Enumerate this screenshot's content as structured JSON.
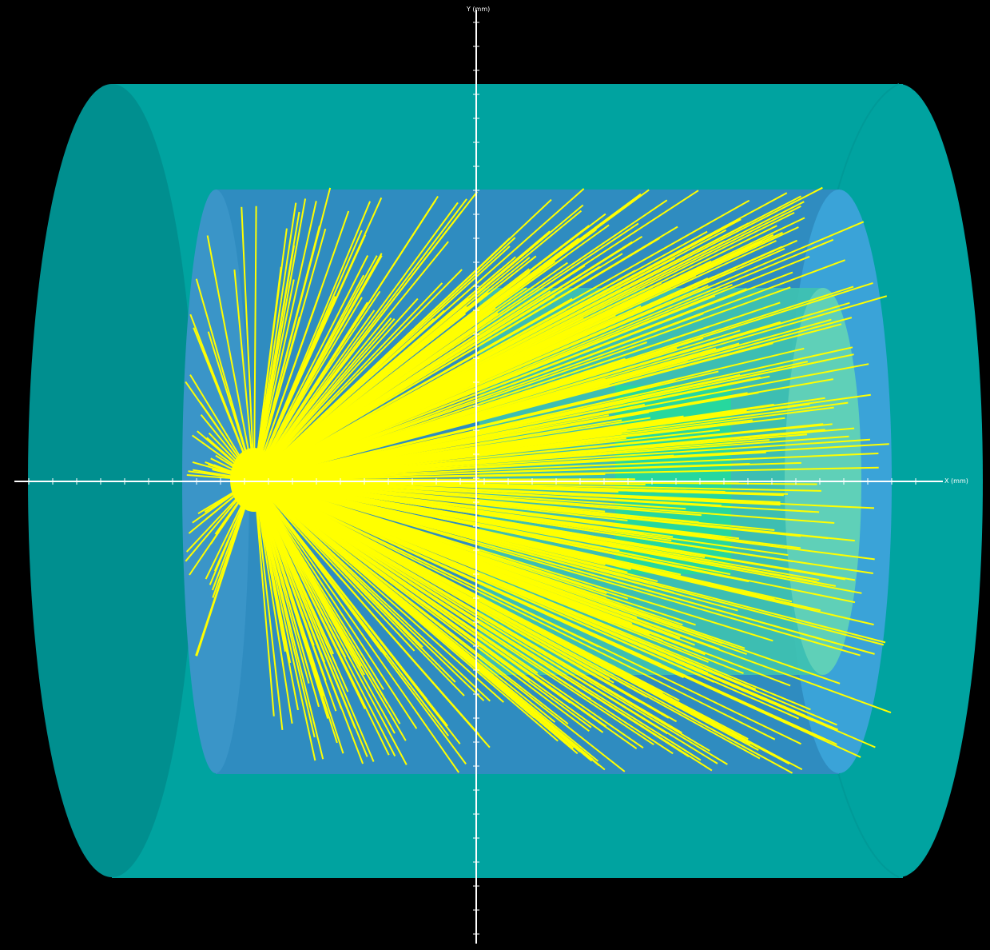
{
  "colors": {
    "background": "#000000",
    "outer_cylinder": "#00a3a0",
    "outer_cylinder_dark": "#008f8f",
    "middle_cylinder": "#2f8cc0",
    "middle_cylinder_light": "#3aa3d8",
    "inner_cylinder": "#3fc3b0",
    "core_block": "#22dd9a",
    "tracks": "#ffff00",
    "axes": "#ffffff"
  },
  "axes": {
    "x_label": "X (mm)",
    "y_label": "Y (mm)"
  },
  "tracks": {
    "count": 520,
    "seed": 7
  }
}
